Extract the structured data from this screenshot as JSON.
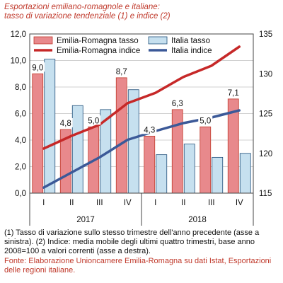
{
  "title_line1": "Esportazioni emiliano-romagnole e italiane:",
  "title_line2": "tasso di variazione tendenziale (1) e indice (2)",
  "notes": {
    "note1": "(1) Tasso di variazione sullo stesso trimestre dell'anno precedente (asse a sinistra). (2) Indice: media mobile degli ultimi quattro trimestri, base anno 2008=100 a valori correnti (asse a destra).",
    "source": "Fonte: Elaborazione Unioncamere Emilia-Romagna su dati Istat, Esportazioni delle regioni italiane."
  },
  "chart_data": {
    "type": "bar",
    "categories": [
      "I",
      "II",
      "III",
      "IV",
      "I",
      "II",
      "III",
      "IV"
    ],
    "groups": [
      {
        "label": "2017",
        "from": 0,
        "to": 3
      },
      {
        "label": "2018",
        "from": 4,
        "to": 7
      }
    ],
    "left_axis": {
      "min": 0,
      "max": 12,
      "ticks": [
        "0,0",
        "2,0",
        "4,0",
        "6,0",
        "8,0",
        "10,0",
        "12,0"
      ]
    },
    "right_axis": {
      "min": 115,
      "max": 135,
      "ticks": [
        "115",
        "120",
        "125",
        "130",
        "135"
      ]
    },
    "bar_series": [
      {
        "name": "Emilia-Romagna tasso",
        "color": "#e8898c",
        "values": [
          9.0,
          4.8,
          5.0,
          8.7,
          4.3,
          6.3,
          5.0,
          7.1
        ],
        "labels": [
          "9,0",
          "4,8",
          "5,0",
          "8,7",
          "4,3",
          "6,3",
          "5,0",
          "7,1"
        ]
      },
      {
        "name": "Italia tasso",
        "color": "#c6e0ef",
        "values": [
          10.1,
          6.6,
          6.3,
          7.8,
          2.9,
          3.7,
          2.7,
          3.0
        ]
      }
    ],
    "line_series": [
      {
        "name": "Emilia-Romagna indice",
        "color": "#c62828",
        "axis": "right",
        "values": [
          120.6,
          122.2,
          123.6,
          126.3,
          127.6,
          129.6,
          131.0,
          133.4
        ]
      },
      {
        "name": "Italia indice",
        "color": "#3b5998",
        "axis": "right",
        "values": [
          115.7,
          117.6,
          119.5,
          121.7,
          122.8,
          123.8,
          124.5,
          125.4
        ]
      }
    ],
    "grid": true,
    "legend": "top"
  }
}
